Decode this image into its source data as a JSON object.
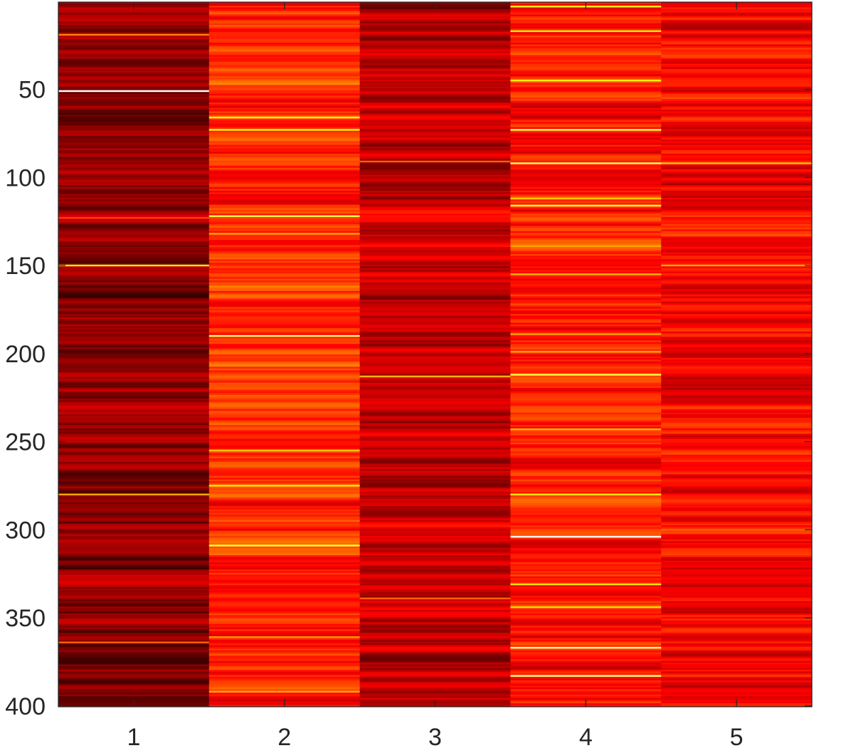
{
  "chart_data": {
    "type": "heatmap",
    "title": "",
    "xlabel": "",
    "ylabel": "",
    "colormap": "hot",
    "x_categories": [
      "1",
      "2",
      "3",
      "4",
      "5"
    ],
    "x_tick_labels": [
      "1",
      "2",
      "3",
      "4",
      "5"
    ],
    "y_tick_labels": [
      "50",
      "100",
      "150",
      "200",
      "250",
      "300",
      "350",
      "400"
    ],
    "y_ticks": [
      50,
      100,
      150,
      200,
      250,
      300,
      350,
      400
    ],
    "ylim": [
      0.5,
      400.5
    ],
    "xlim": [
      0.5,
      5.5
    ],
    "n_rows": 400,
    "value_range": [
      0,
      1
    ],
    "columns": [
      {
        "name": "1",
        "base_level": 0.2,
        "highlight_rows": [
          {
            "row": 19,
            "value": 0.55
          },
          {
            "row": 51,
            "value": 1.0
          },
          {
            "row": 123,
            "value": 0.45
          },
          {
            "row": 150,
            "value": 0.7
          },
          {
            "row": 280,
            "value": 0.6
          },
          {
            "row": 364,
            "value": 0.5
          }
        ]
      },
      {
        "name": "2",
        "base_level": 0.42,
        "highlight_rows": [
          {
            "row": 66,
            "value": 0.75
          },
          {
            "row": 73,
            "value": 0.72
          },
          {
            "row": 122,
            "value": 0.8
          },
          {
            "row": 132,
            "value": 0.6
          },
          {
            "row": 162,
            "value": 0.55
          },
          {
            "row": 190,
            "value": 0.85
          },
          {
            "row": 255,
            "value": 0.65
          },
          {
            "row": 275,
            "value": 0.7
          },
          {
            "row": 309,
            "value": 0.78
          },
          {
            "row": 361,
            "value": 0.58
          },
          {
            "row": 392,
            "value": 0.6
          }
        ]
      },
      {
        "name": "3",
        "base_level": 0.28,
        "highlight_rows": [
          {
            "row": 91,
            "value": 0.5
          },
          {
            "row": 213,
            "value": 0.62
          },
          {
            "row": 339,
            "value": 0.5
          }
        ]
      },
      {
        "name": "4",
        "base_level": 0.4,
        "highlight_rows": [
          {
            "row": 3,
            "value": 0.75
          },
          {
            "row": 17,
            "value": 0.7
          },
          {
            "row": 45,
            "value": 0.72
          },
          {
            "row": 73,
            "value": 0.8
          },
          {
            "row": 92,
            "value": 0.82
          },
          {
            "row": 112,
            "value": 0.65
          },
          {
            "row": 116,
            "value": 0.78
          },
          {
            "row": 139,
            "value": 0.6
          },
          {
            "row": 155,
            "value": 0.62
          },
          {
            "row": 189,
            "value": 0.6
          },
          {
            "row": 199,
            "value": 0.6
          },
          {
            "row": 212,
            "value": 0.8
          },
          {
            "row": 243,
            "value": 0.62
          },
          {
            "row": 280,
            "value": 0.7
          },
          {
            "row": 304,
            "value": 0.98
          },
          {
            "row": 331,
            "value": 0.7
          },
          {
            "row": 344,
            "value": 0.68
          },
          {
            "row": 367,
            "value": 0.88
          },
          {
            "row": 383,
            "value": 0.85
          }
        ]
      },
      {
        "name": "5",
        "base_level": 0.36,
        "highlight_rows": [
          {
            "row": 92,
            "value": 0.65
          },
          {
            "row": 150,
            "value": 0.6
          },
          {
            "row": 300,
            "value": 0.5
          }
        ]
      }
    ]
  }
}
